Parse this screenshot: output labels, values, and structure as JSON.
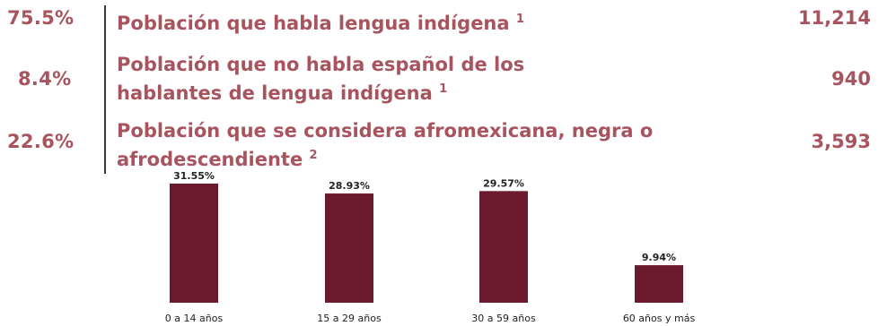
{
  "stats": [
    {
      "percent": "75.5%",
      "label": "Población que habla lengua indígena",
      "note": "1",
      "count": "11,214"
    },
    {
      "percent": "8.4%",
      "label": "Población que no habla español de los hablantes de lengua indígena",
      "note": "1",
      "count": "940"
    },
    {
      "percent": "22.6%",
      "label": "Población que se considera afromexicana, negra o afrodescendiente",
      "note": "2",
      "count": "3,593"
    }
  ],
  "chart_data": {
    "type": "bar",
    "categories": [
      "0 a 14 años",
      "15 a 29 años",
      "30 a 59 años",
      "60 años y más"
    ],
    "values": [
      31.55,
      28.93,
      29.57,
      9.94
    ],
    "value_labels": [
      "31.55%",
      "28.93%",
      "29.57%",
      "9.94%"
    ],
    "title": "",
    "xlabel": "",
    "ylabel": "",
    "ylim": [
      0,
      31.55
    ],
    "grid": false,
    "bar_color": "#6b1a2d"
  },
  "colors": {
    "accent": "#a8545f",
    "bar": "#6b1a2d"
  }
}
